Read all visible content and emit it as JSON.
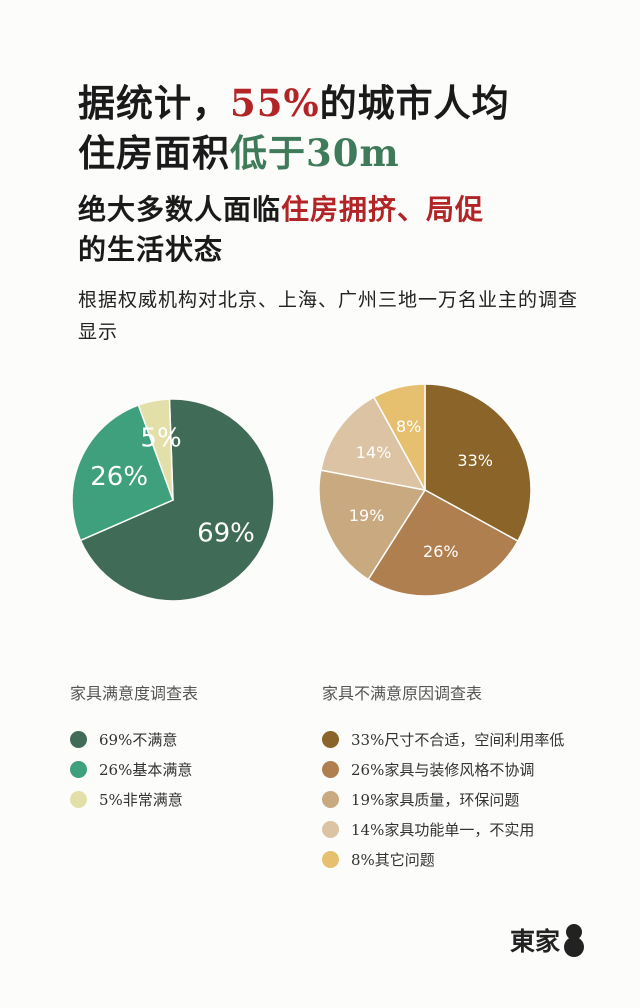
{
  "headline": {
    "line1_prefix": "据统计，",
    "line1_highlight": "55%",
    "line1_suffix": "的城市人均",
    "line2_prefix": "住房面积",
    "line2_highlight": "低于30m"
  },
  "subheadline": {
    "prefix": "绝大多数人面临",
    "highlight": "住房拥挤、局促",
    "line2": "的生活状态"
  },
  "description": "根据权威机构对北京、上海、广州三地一万名业主的调查显示",
  "chart_data": [
    {
      "type": "pie",
      "title": "家具满意度调查表",
      "categories": [
        "69%不满意",
        "26%基本满意",
        "5%非常满意"
      ],
      "values": [
        69,
        26,
        5
      ],
      "labels": [
        "69%",
        "26%",
        "5%"
      ],
      "colors": [
        "#3f6b57",
        "#3ea07c",
        "#e2e0a8"
      ],
      "legend": "bottom"
    },
    {
      "type": "pie",
      "title": "家具不满意原因调查表",
      "categories": [
        "33%尺寸不合适，空间利用率低",
        "26%家具与装修风格不协调",
        "19%家具质量，环保问题",
        "14%家具功能单一，不实用",
        "8%其它问题"
      ],
      "values": [
        33,
        26,
        19,
        14,
        8
      ],
      "labels": [
        "33%",
        "26%",
        "19%",
        "14%",
        "8%"
      ],
      "colors": [
        "#8a6428",
        "#b07f50",
        "#c9aa80",
        "#dcc3a4",
        "#e6c06e"
      ],
      "legend": "bottom"
    }
  ],
  "logo": {
    "text": "東家",
    "mark_icon": "figure-eight-icon"
  }
}
